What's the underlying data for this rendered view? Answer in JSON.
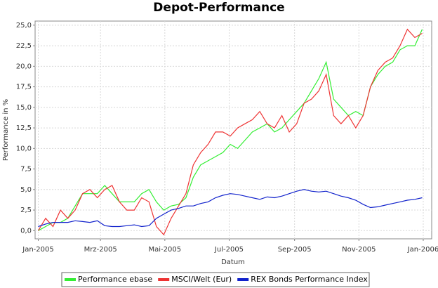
{
  "chart_data": {
    "type": "line",
    "title": "Depot-Performance",
    "xlabel": "Datum",
    "ylabel": "Performance in %",
    "x": [
      0,
      7,
      14,
      21,
      28,
      35,
      42,
      49,
      56,
      63,
      70,
      77,
      84,
      91,
      98,
      105,
      112,
      119,
      126,
      133,
      140,
      147,
      154,
      161,
      168,
      175,
      182,
      189,
      196,
      203,
      210,
      217,
      224,
      231,
      238,
      245,
      252,
      259,
      266,
      273,
      280,
      287,
      294,
      301,
      308,
      315,
      322,
      329,
      336,
      343,
      350,
      357,
      364
    ],
    "series": [
      {
        "name": "Performance ebase",
        "color": "#33ee33",
        "values": [
          0,
          0.5,
          1,
          1,
          1.5,
          3,
          4.5,
          4.5,
          4.5,
          5.5,
          4.5,
          3.5,
          3.5,
          3.5,
          4.5,
          5,
          3.5,
          2.5,
          3,
          3.2,
          4,
          6.5,
          8,
          8.5,
          9,
          9.5,
          10.5,
          10,
          11,
          12,
          12.5,
          13,
          12,
          12.5,
          13.5,
          14.5,
          15.5,
          17,
          18.5,
          20.5,
          16,
          15,
          14,
          14.5,
          14,
          17.5,
          19,
          20,
          20.5,
          22,
          22.5,
          22.5,
          24.5
        ]
      },
      {
        "name": "MSCI/Welt (Eur)",
        "color": "#ee3333",
        "values": [
          0,
          1.5,
          0.5,
          2.5,
          1.5,
          2.5,
          4.5,
          5,
          4,
          5,
          5.5,
          3.5,
          2.5,
          2.5,
          4,
          3.5,
          0.5,
          -0.5,
          1.5,
          3,
          4.5,
          8,
          9.5,
          10.5,
          12,
          12,
          11.5,
          12.5,
          13,
          13.5,
          14.5,
          13,
          12.5,
          14,
          12,
          13,
          15.5,
          16,
          17,
          19,
          14,
          13,
          14,
          12.5,
          14,
          17.5,
          19.5,
          20.5,
          21,
          22.5,
          24.5,
          23.5,
          24
        ]
      },
      {
        "name": "REX Bonds Performance Index",
        "color": "#1122cc",
        "values": [
          0.5,
          0.8,
          1,
          1,
          1,
          1.2,
          1.1,
          1,
          1.2,
          0.6,
          0.5,
          0.5,
          0.6,
          0.7,
          0.5,
          0.6,
          1.5,
          2,
          2.5,
          2.7,
          3,
          3,
          3.3,
          3.5,
          4,
          4.3,
          4.5,
          4.4,
          4.2,
          4,
          3.8,
          4.1,
          4,
          4.2,
          4.5,
          4.8,
          5,
          4.8,
          4.7,
          4.8,
          4.5,
          4.2,
          4,
          3.7,
          3.2,
          2.8,
          2.9,
          3.1,
          3.3,
          3.5,
          3.7,
          3.8,
          4
        ]
      }
    ],
    "xlim": [
      -3,
      373
    ],
    "ylim": [
      -1,
      25.5
    ],
    "xticks": [
      {
        "value": 0,
        "label": "Jan-2005"
      },
      {
        "value": 59,
        "label": "Mrz-2005"
      },
      {
        "value": 120,
        "label": "Mai-2005"
      },
      {
        "value": 181,
        "label": "Jul-2005"
      },
      {
        "value": 243,
        "label": "Sep-2005"
      },
      {
        "value": 304,
        "label": "Nov-2005"
      },
      {
        "value": 365,
        "label": "Jan-2006"
      }
    ],
    "yticks": [
      {
        "value": 0,
        "label": "0,0"
      },
      {
        "value": 2.5,
        "label": "2,5"
      },
      {
        "value": 5,
        "label": "5,0"
      },
      {
        "value": 7.5,
        "label": "7,5"
      },
      {
        "value": 10,
        "label": "10,0"
      },
      {
        "value": 12.5,
        "label": "12,5"
      },
      {
        "value": 15,
        "label": "15,0"
      },
      {
        "value": 17.5,
        "label": "17,5"
      },
      {
        "value": 20,
        "label": "20,0"
      },
      {
        "value": 22.5,
        "label": "22,5"
      },
      {
        "value": 25,
        "label": "25,0"
      }
    ],
    "grid": true,
    "legend": "bottom"
  }
}
